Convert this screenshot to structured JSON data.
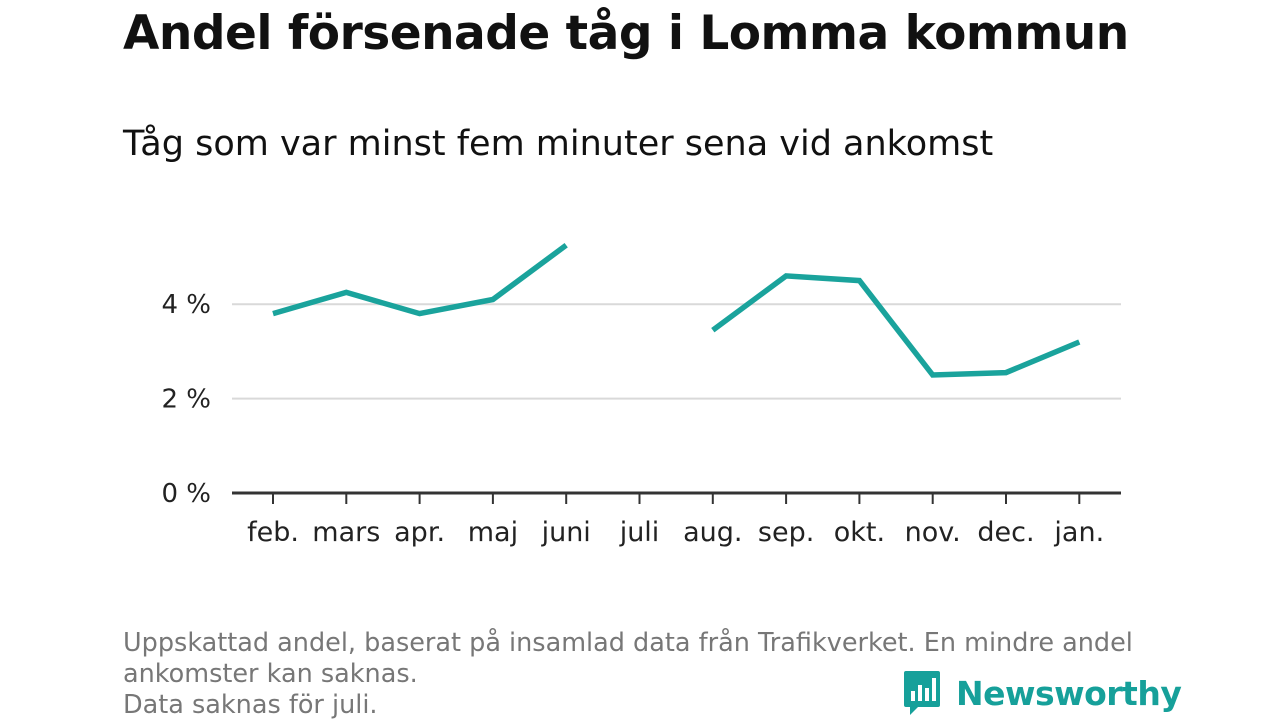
{
  "title": "Andel försenade tåg i Lomma kommun",
  "subtitle": "Tåg som var minst fem minuter sena vid ankomst",
  "notes": [
    "Uppskattad andel, baserat på insamlad data från Trafikverket. En mindre andel",
    "ankomster kan saknas.",
    "Data saknas för juli."
  ],
  "brand": {
    "name": "Newsworthy",
    "icon": "newsworthy-logo-icon",
    "color": "#16a09a"
  },
  "chart_data": {
    "type": "line",
    "title": "Andel försenade tåg i Lomma kommun",
    "subtitle": "Tåg som var minst fem minuter sena vid ankomst",
    "categories": [
      "feb.",
      "mars",
      "apr.",
      "maj",
      "juni",
      "juli",
      "aug.",
      "sep.",
      "okt.",
      "nov.",
      "dec.",
      "jan."
    ],
    "series": [
      {
        "values": [
          3.8,
          4.25,
          3.8,
          4.1,
          5.25,
          null,
          3.45,
          4.6,
          4.5,
          2.5,
          2.55,
          3.2
        ],
        "color": "#1aa39c"
      }
    ],
    "y_ticks": [
      0,
      2,
      4
    ],
    "y_tick_labels": [
      "0 %",
      "2 %",
      "4 %"
    ],
    "ylim": [
      0,
      5.6
    ],
    "grid": true,
    "xlabel": "",
    "ylabel": ""
  }
}
